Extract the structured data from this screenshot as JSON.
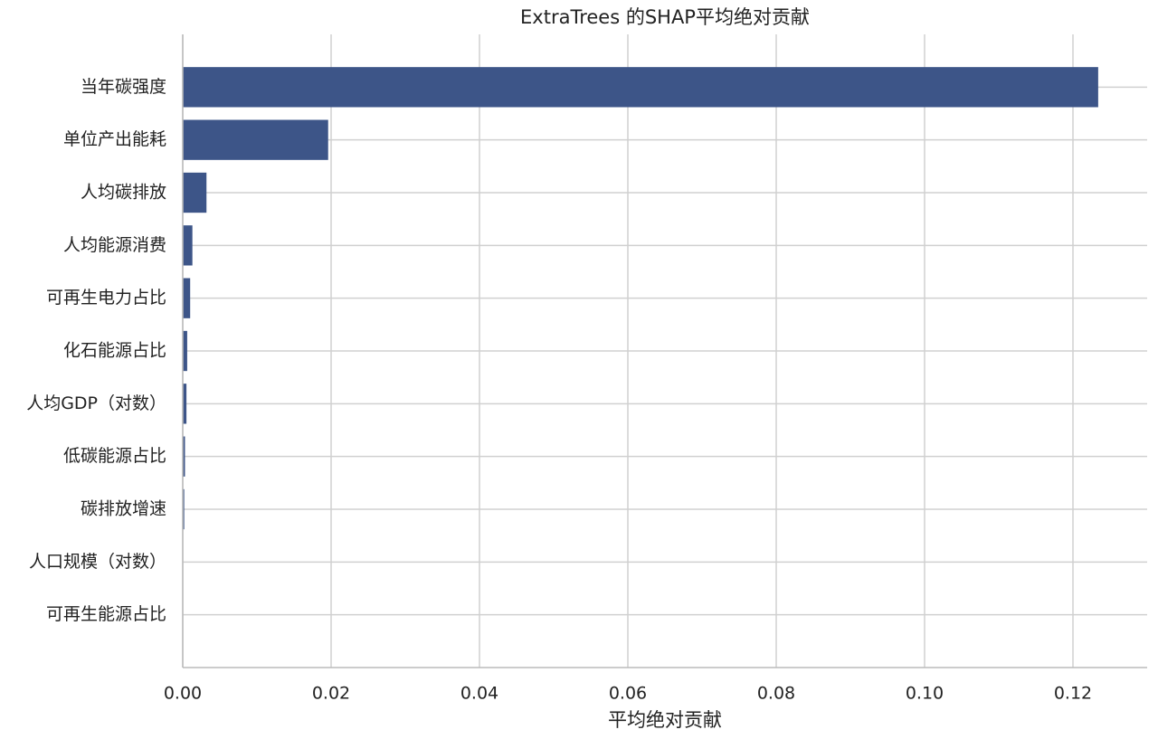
{
  "chart_data": {
    "type": "barh",
    "title": "ExtraTrees 的SHAP平均绝对贡献",
    "x_label": "平均绝对贡献",
    "categories": [
      "当年碳强度",
      "单位产出能耗",
      "人均碳排放",
      "人均能源消费",
      "可再生电力占比",
      "化石能源占比",
      "人均GDP（对数）",
      "低碳能源占比",
      "碳排放增速",
      "人口规模（对数）",
      "可再生能源占比"
    ],
    "values": [
      0.1234,
      0.0196,
      0.0032,
      0.0013,
      0.001,
      0.0006,
      0.0005,
      0.0003,
      0.0002,
      0.0,
      0.0
    ],
    "color": "#3d5588",
    "xlim": [
      0,
      0.13
    ],
    "xticks": [
      {
        "value": 0,
        "label": "0.00"
      },
      {
        "value": 0.02,
        "label": "0.02"
      },
      {
        "value": 0.04,
        "label": "0.04"
      },
      {
        "value": 0.06,
        "label": "0.06"
      },
      {
        "value": 0.08,
        "label": "0.08"
      },
      {
        "value": 0.1,
        "label": "0.10"
      },
      {
        "value": 0.12,
        "label": "0.12"
      }
    ],
    "grid": true
  }
}
